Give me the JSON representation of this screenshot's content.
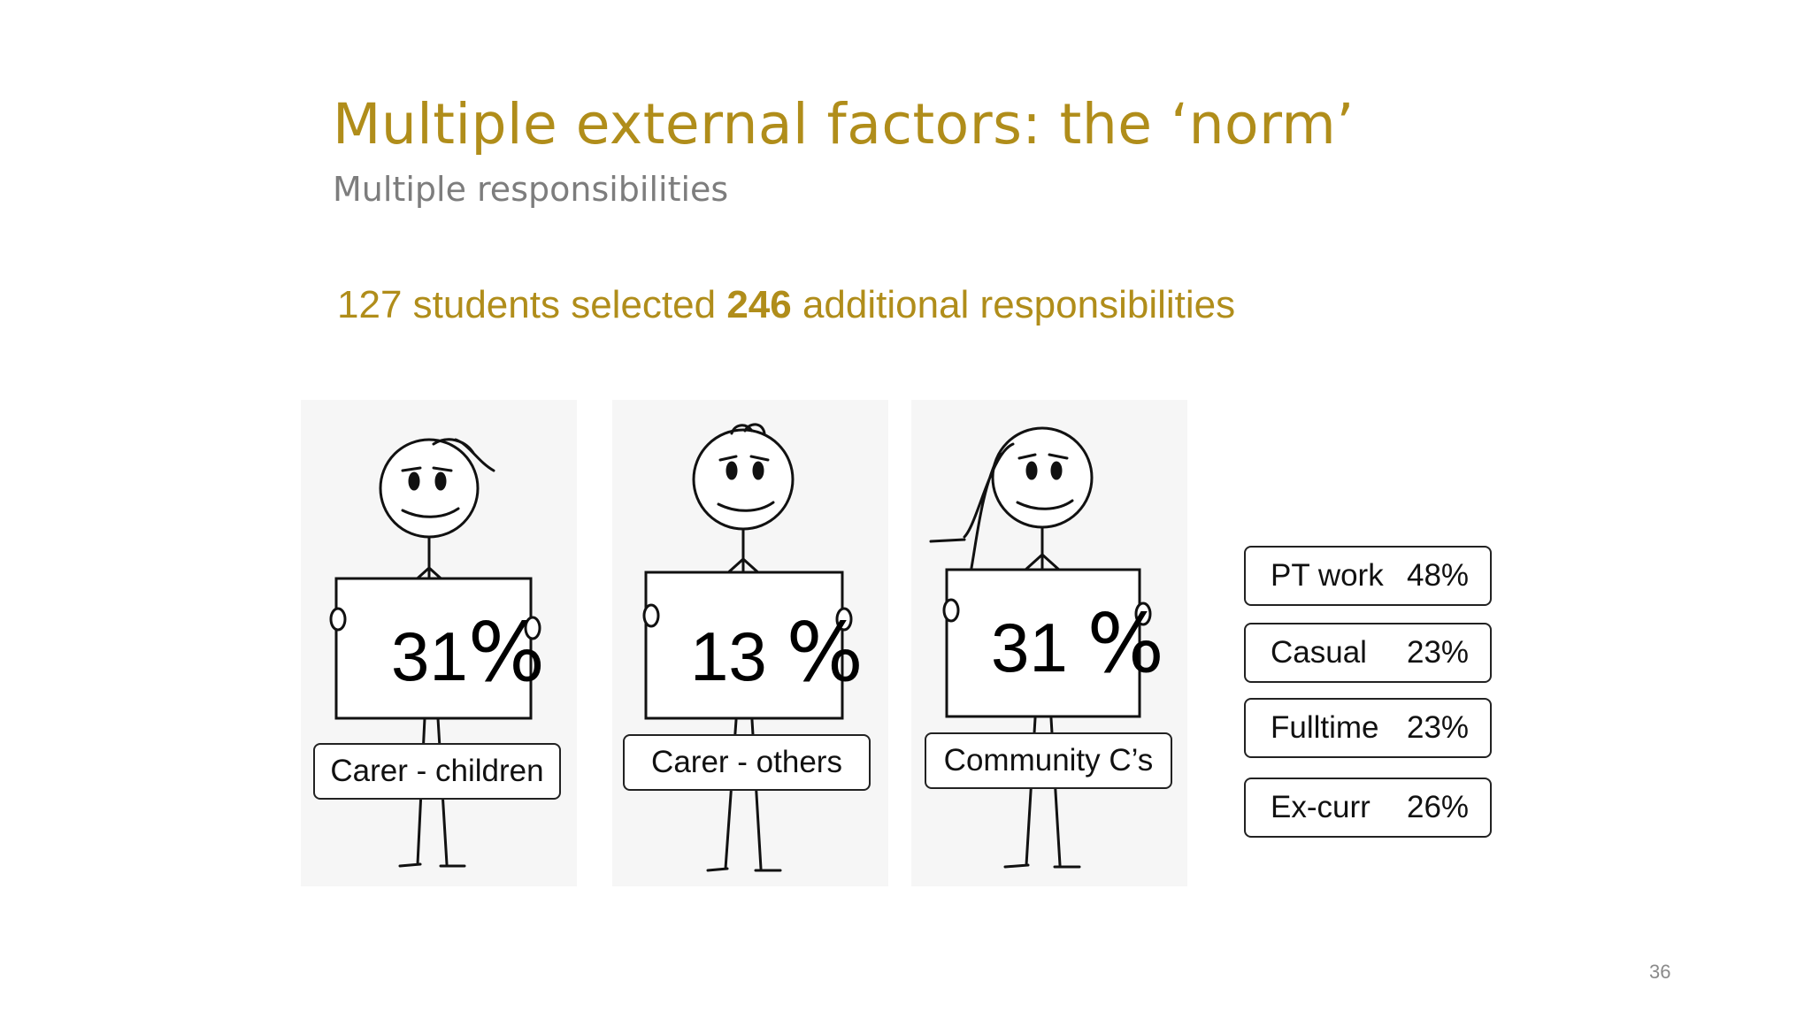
{
  "slide": {
    "title": "Multiple external factors: the ‘norm’",
    "subtitle": "Multiple responsibilities",
    "stat": {
      "pre": "127 students selected ",
      "bold": "246",
      "post": " additional responsibilities"
    },
    "page_number": "36",
    "colors": {
      "accent": "#b08d1a",
      "subtitle": "#7d7d7d",
      "text": "#111111"
    }
  },
  "figures": [
    {
      "percent_number": "31",
      "percent_symbol": "%",
      "label": "Carer - children"
    },
    {
      "percent_number": "13",
      "percent_symbol": "%",
      "label": "Carer - others"
    },
    {
      "percent_number": "31",
      "percent_symbol": "%",
      "label": "Community C’s"
    }
  ],
  "work": [
    {
      "label": "PT work",
      "value": "48%"
    },
    {
      "label": "Casual",
      "value": "23%"
    },
    {
      "label": "Fulltime",
      "value": "23%"
    },
    {
      "label": "Ex-curr",
      "value": "26%"
    }
  ]
}
